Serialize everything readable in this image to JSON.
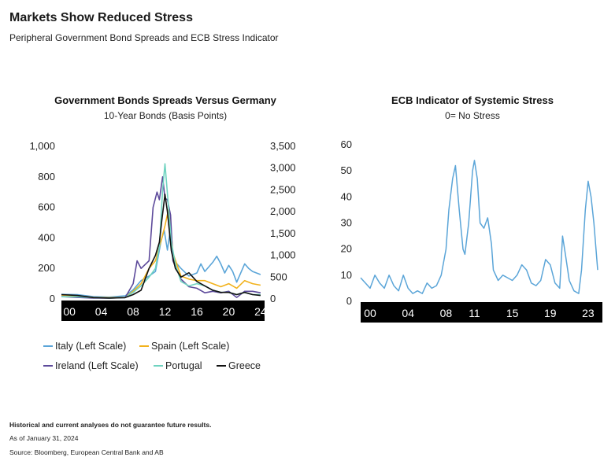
{
  "header": {
    "title": "Markets Show Reduced Stress",
    "subtitle": "Peripheral Government Bond Spreads and ECB Stress Indicator"
  },
  "chart_data": [
    {
      "type": "line",
      "title": "Government Bonds Spreads Versus Germany",
      "subtitle": "10-Year Bonds (Basis Points)",
      "x_tick_labels": [
        "00",
        "04",
        "08",
        "12",
        "16",
        "20",
        "24"
      ],
      "x_ticks_year": [
        2000,
        2004,
        2008,
        2012,
        2016,
        2020,
        2024
      ],
      "xlim": [
        1999,
        2024.5
      ],
      "y_left": {
        "lim": [
          0,
          1000
        ],
        "ticks": [
          "0",
          "200",
          "400",
          "600",
          "800",
          "1,000"
        ],
        "tick_values": [
          0,
          200,
          400,
          600,
          800,
          1000
        ]
      },
      "y_right": {
        "lim": [
          0,
          3500
        ],
        "ticks": [
          "0",
          "500",
          "1,000",
          "1,500",
          "2,000",
          "2,500",
          "3,000",
          "3,500"
        ],
        "tick_values": [
          0,
          500,
          1000,
          1500,
          2000,
          2500,
          3000,
          3500
        ]
      },
      "legend_placement": "bottom",
      "series": [
        {
          "name": "Italy (Left Scale)",
          "color": "#5ba5d8",
          "axis": "left",
          "x": [
            1999,
            2001,
            2003,
            2005,
            2007,
            2008,
            2009,
            2010,
            2010.8,
            2011.5,
            2011.9,
            2012.3,
            2012.6,
            2013,
            2014,
            2015,
            2016,
            2016.5,
            2017,
            2018,
            2018.5,
            2019,
            2019.5,
            2020,
            2020.5,
            2021,
            2022,
            2022.5,
            2023,
            2024
          ],
          "y": [
            30,
            28,
            15,
            12,
            20,
            60,
            120,
            150,
            180,
            380,
            450,
            320,
            430,
            260,
            200,
            150,
            170,
            230,
            180,
            240,
            280,
            230,
            170,
            220,
            180,
            110,
            230,
            200,
            180,
            160
          ]
        },
        {
          "name": "Spain (Left Scale)",
          "color": "#f2b21c",
          "axis": "left",
          "x": [
            1999,
            2001,
            2003,
            2005,
            2007,
            2008,
            2009,
            2010,
            2010.8,
            2011.5,
            2012,
            2012.5,
            2013,
            2014,
            2015,
            2016,
            2017,
            2018,
            2019,
            2020,
            2021,
            2022,
            2023,
            2024
          ],
          "y": [
            25,
            20,
            10,
            8,
            10,
            50,
            100,
            200,
            250,
            380,
            480,
            600,
            300,
            150,
            130,
            120,
            120,
            100,
            80,
            100,
            70,
            120,
            100,
            90
          ]
        },
        {
          "name": "Ireland (Left Scale)",
          "color": "#5d4a9b",
          "axis": "left",
          "x": [
            1999,
            2001,
            2003,
            2005,
            2007,
            2008,
            2008.5,
            2009,
            2010,
            2010.5,
            2011,
            2011.3,
            2011.7,
            2012,
            2012.3,
            2012.7,
            2013,
            2014,
            2015,
            2016,
            2017,
            2018,
            2019,
            2020,
            2021,
            2022,
            2023,
            2024
          ],
          "y": [
            15,
            10,
            5,
            5,
            8,
            100,
            250,
            200,
            250,
            600,
            700,
            650,
            800,
            660,
            650,
            550,
            250,
            130,
            80,
            70,
            40,
            50,
            40,
            50,
            10,
            50,
            50,
            40
          ]
        },
        {
          "name": "Portugal",
          "color": "#6fd3c0",
          "axis": "right",
          "x": [
            1999,
            2001,
            2003,
            2005,
            2007,
            2008,
            2009,
            2010,
            2010.8,
            2011.3,
            2011.7,
            2012,
            2012.4,
            2012.8,
            2013.3,
            2014,
            2015,
            2016,
            2017,
            2018,
            2019,
            2020,
            2021,
            2022,
            2023,
            2024
          ],
          "y": [
            50,
            50,
            30,
            20,
            30,
            150,
            300,
            500,
            700,
            1200,
            2500,
            3100,
            2200,
            1300,
            800,
            400,
            300,
            350,
            300,
            200,
            150,
            150,
            100,
            150,
            100,
            100
          ]
        },
        {
          "name": "Greece",
          "color": "#111111",
          "axis": "right",
          "x": [
            1999,
            2001,
            2003,
            2005,
            2007,
            2008,
            2009,
            2010,
            2010.8,
            2011.3,
            2011.6,
            2012,
            2012.3,
            2012.8,
            2013.3,
            2014,
            2015,
            2016,
            2017,
            2018,
            2019,
            2020,
            2021,
            2022,
            2023,
            2024
          ],
          "y": [
            100,
            80,
            30,
            20,
            30,
            100,
            200,
            700,
            1000,
            1300,
            1800,
            2400,
            2000,
            1100,
            700,
            500,
            600,
            400,
            300,
            200,
            150,
            150,
            100,
            150,
            100,
            80
          ]
        }
      ]
    },
    {
      "type": "line",
      "title": "ECB Indicator of Systemic Stress",
      "subtitle": "0= No Stress",
      "x_tick_labels": [
        "00",
        "04",
        "08",
        "11",
        "15",
        "19",
        "23"
      ],
      "x_ticks_year": [
        2000,
        2004,
        2008,
        2011,
        2015,
        2019,
        2023
      ],
      "xlim": [
        1999,
        2024.5
      ],
      "ylim": [
        0,
        60
      ],
      "y_ticks": [
        "0",
        "10",
        "20",
        "30",
        "40",
        "50",
        "60"
      ],
      "y_tick_values": [
        0,
        10,
        20,
        30,
        40,
        50,
        60
      ],
      "series": [
        {
          "color": "#5ba5d8",
          "x": [
            1999,
            1999.5,
            2000,
            2000.5,
            2001,
            2001.5,
            2002,
            2002.5,
            2003,
            2003.5,
            2004,
            2004.5,
            2005,
            2005.5,
            2006,
            2006.5,
            2007,
            2007.5,
            2008,
            2008.3,
            2008.7,
            2009,
            2009.4,
            2009.8,
            2010,
            2010.4,
            2010.8,
            2011,
            2011.3,
            2011.6,
            2012,
            2012.4,
            2012.8,
            2013,
            2013.5,
            2014,
            2014.5,
            2015,
            2015.5,
            2016,
            2016.5,
            2017,
            2017.5,
            2018,
            2018.5,
            2019,
            2019.5,
            2020,
            2020.3,
            2020.6,
            2021,
            2021.5,
            2022,
            2022.3,
            2022.7,
            2023,
            2023.3,
            2023.6,
            2024
          ],
          "y": [
            9,
            7,
            5,
            10,
            7,
            5,
            10,
            6,
            4,
            10,
            5,
            3,
            4,
            3,
            7,
            5,
            6,
            10,
            20,
            35,
            47,
            52,
            35,
            20,
            18,
            30,
            50,
            54,
            47,
            30,
            28,
            32,
            22,
            12,
            8,
            10,
            9,
            8,
            10,
            14,
            12,
            7,
            6,
            8,
            16,
            14,
            7,
            5,
            25,
            18,
            8,
            4,
            3,
            12,
            35,
            46,
            40,
            30,
            12
          ]
        }
      ]
    }
  ],
  "legend": [
    {
      "label": "Italy (Left Scale)",
      "color": "#5ba5d8"
    },
    {
      "label": "Spain (Left Scale)",
      "color": "#f2b21c"
    },
    {
      "label": "Ireland (Left Scale)",
      "color": "#5d4a9b"
    },
    {
      "label": "Portugal",
      "color": "#6fd3c0"
    },
    {
      "label": "Greece",
      "color": "#111111"
    }
  ],
  "footer": {
    "disclaimer": "Historical and current analyses do not guarantee future results.",
    "asof": "As of January 31, 2024",
    "source": "Source: Bloomberg, European Central Bank and AB"
  }
}
